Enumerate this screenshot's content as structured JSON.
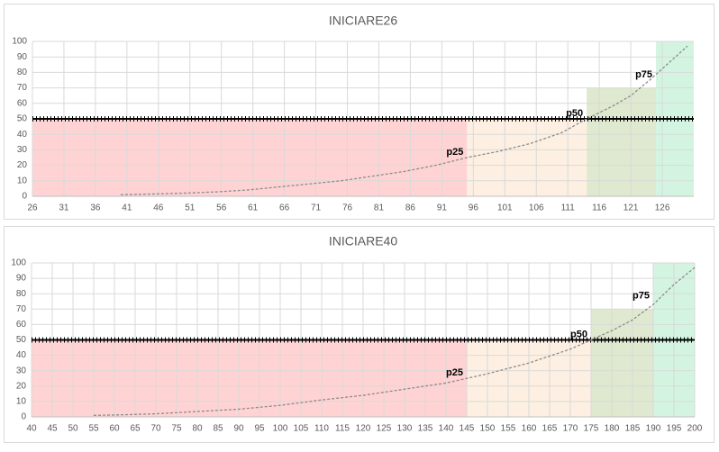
{
  "chart_data": [
    {
      "type": "line",
      "title": "INICIARE26",
      "xlim": [
        26,
        131
      ],
      "ylim": [
        0,
        100
      ],
      "xticks": [
        26,
        31,
        36,
        41,
        46,
        51,
        56,
        61,
        66,
        71,
        76,
        81,
        86,
        91,
        96,
        101,
        106,
        111,
        116,
        121,
        126
      ],
      "yticks": [
        0,
        10,
        20,
        30,
        40,
        50,
        60,
        70,
        80,
        90,
        100
      ],
      "grid": true,
      "bands": [
        {
          "x0": 26,
          "x1": 95,
          "top": 50,
          "color": "#ffd3d3"
        },
        {
          "x0": 95,
          "x1": 114,
          "top": 50,
          "color": "#fdf0e2"
        },
        {
          "x0": 114,
          "x1": 125,
          "top": 70,
          "color": "#dfe9cf"
        },
        {
          "x0": 125,
          "x1": 131,
          "top": 100,
          "color": "#d4f4e2"
        }
      ],
      "reference_line": 50,
      "series": [
        {
          "color": "#8c8c8c",
          "x": [
            40,
            45,
            50,
            55,
            60,
            65,
            70,
            75,
            80,
            85,
            90,
            95,
            100,
            105,
            110,
            114,
            118,
            121,
            124,
            127,
            130
          ],
          "values": [
            1,
            1.5,
            2,
            2.8,
            4,
            6,
            8,
            10,
            13,
            16,
            20,
            25,
            29,
            34,
            41,
            50,
            58,
            65,
            75,
            86,
            97
          ]
        }
      ],
      "annotations": [
        {
          "text": "p25",
          "x": 95,
          "y": 25
        },
        {
          "text": "p50",
          "x": 114,
          "y": 50
        },
        {
          "text": "p75",
          "x": 125,
          "y": 75
        }
      ]
    },
    {
      "type": "line",
      "title": "INICIARE40",
      "xlim": [
        40,
        200
      ],
      "ylim": [
        0,
        100
      ],
      "xticks": [
        40,
        45,
        50,
        55,
        60,
        65,
        70,
        75,
        80,
        85,
        90,
        95,
        100,
        105,
        110,
        115,
        120,
        125,
        130,
        135,
        140,
        145,
        150,
        155,
        160,
        165,
        170,
        175,
        180,
        185,
        190,
        195,
        200
      ],
      "yticks": [
        0,
        10,
        20,
        30,
        40,
        50,
        60,
        70,
        80,
        90,
        100
      ],
      "grid": true,
      "bands": [
        {
          "x0": 40,
          "x1": 145,
          "top": 50,
          "color": "#ffd3d3"
        },
        {
          "x0": 145,
          "x1": 175,
          "top": 50,
          "color": "#fdf0e2"
        },
        {
          "x0": 175,
          "x1": 190,
          "top": 70,
          "color": "#dfe9cf"
        },
        {
          "x0": 190,
          "x1": 200,
          "top": 100,
          "color": "#d4f4e2"
        }
      ],
      "reference_line": 50,
      "series": [
        {
          "color": "#8c8c8c",
          "x": [
            55,
            60,
            70,
            80,
            90,
            100,
            110,
            120,
            130,
            140,
            145,
            150,
            160,
            170,
            175,
            180,
            185,
            190,
            195,
            200
          ],
          "values": [
            1,
            1.2,
            2,
            3.5,
            5,
            7.5,
            11,
            14,
            18,
            22,
            25,
            28,
            35,
            44,
            50,
            56,
            63,
            73,
            86,
            97
          ]
        }
      ],
      "annotations": [
        {
          "text": "p25",
          "x": 145,
          "y": 25
        },
        {
          "text": "p50",
          "x": 175,
          "y": 50
        },
        {
          "text": "p75",
          "x": 190,
          "y": 75
        }
      ]
    }
  ]
}
